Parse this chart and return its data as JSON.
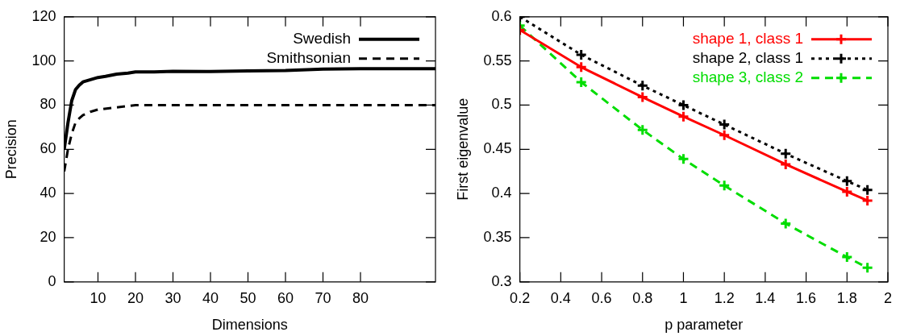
{
  "chart_data": [
    {
      "type": "line",
      "xlabel": "Dimensions",
      "ylabel": "Precision",
      "xlim": [
        1,
        100
      ],
      "xticks": [
        10,
        20,
        30,
        40,
        50,
        60,
        70,
        80
      ],
      "ylim": [
        0,
        120
      ],
      "yticks": [
        0,
        20,
        40,
        60,
        80,
        100,
        120
      ],
      "grid": false,
      "legend": "top right",
      "marker": "none",
      "series": [
        {
          "name": "Swedish",
          "color": "#000000",
          "line_style": "solid",
          "x": [
            1,
            2,
            3,
            4,
            5,
            6,
            8,
            10,
            12,
            15,
            18,
            20,
            25,
            30,
            40,
            50,
            60,
            70,
            80,
            90,
            100
          ],
          "values": [
            60,
            72,
            82,
            87,
            89,
            90.5,
            91.5,
            92.5,
            93,
            94,
            94.5,
            95,
            95,
            95.3,
            95.2,
            95.5,
            95.7,
            96.3,
            96.5,
            96.5,
            96.5
          ]
        },
        {
          "name": "Smithsonian",
          "color": "#000000",
          "line_style": "dashed",
          "x": [
            1,
            2,
            3,
            4,
            5,
            6,
            8,
            10,
            15,
            20,
            30,
            40,
            50,
            60,
            70,
            80,
            90,
            100
          ],
          "values": [
            50,
            60,
            67,
            72,
            74,
            75.5,
            77,
            78,
            79,
            80,
            80,
            80,
            80,
            80,
            80,
            80,
            80,
            80
          ]
        }
      ]
    },
    {
      "type": "line",
      "xlabel": "p parameter",
      "ylabel": "First eigenvalue",
      "xlim": [
        0.2,
        2
      ],
      "xticks": [
        0.2,
        0.4,
        0.6,
        0.8,
        1,
        1.2,
        1.4,
        1.6,
        1.8,
        2
      ],
      "ylim": [
        0.3,
        0.6
      ],
      "yticks": [
        0.3,
        0.35,
        0.4,
        0.45,
        0.5,
        0.55,
        0.6
      ],
      "grid": false,
      "legend": "top right",
      "x": [
        0.2,
        0.5,
        0.8,
        1,
        1.2,
        1.5,
        1.8,
        1.9
      ],
      "series": [
        {
          "name": "shape 1, class 1",
          "color": "#ff0000",
          "marker": "cross",
          "line_style": "solid",
          "values": [
            0.585,
            0.543,
            0.509,
            0.487,
            0.466,
            0.433,
            0.402,
            0.392
          ]
        },
        {
          "name": "shape 2, class 1",
          "color": "#000000",
          "marker": "cross",
          "line_style": "dotted",
          "values": [
            0.6,
            0.557,
            0.522,
            0.5,
            0.478,
            0.445,
            0.414,
            0.404
          ]
        },
        {
          "name": "shape 3, class 2",
          "color": "#00dd00",
          "marker": "cross",
          "line_style": "dashed",
          "values": [
            0.59,
            0.526,
            0.472,
            0.439,
            0.409,
            0.366,
            0.328,
            0.316
          ]
        }
      ]
    }
  ]
}
